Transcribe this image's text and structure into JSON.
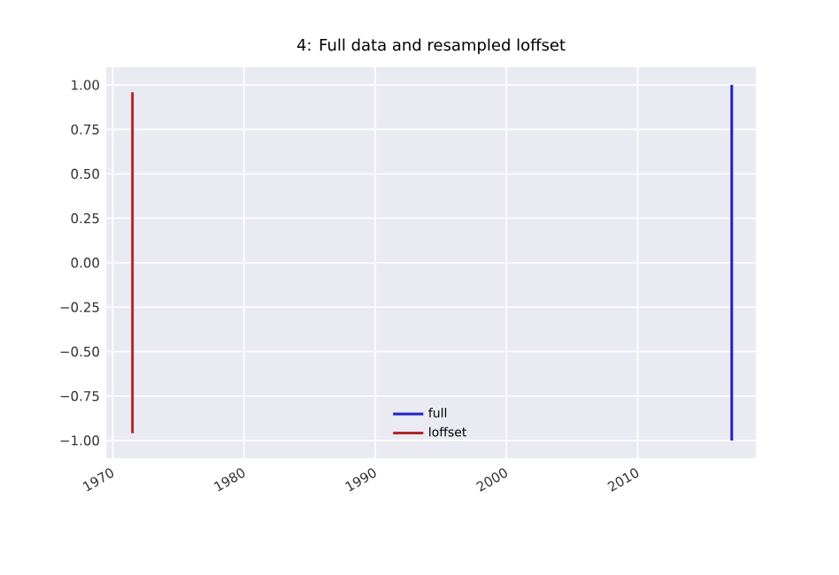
{
  "chart_data": {
    "type": "line",
    "title": "4: Full data and resampled loffset",
    "xlim": [
      "1969-07",
      "2019-01"
    ],
    "ylim": [
      -1.1,
      1.1
    ],
    "xticks": [
      "1970",
      "1980",
      "1990",
      "2000",
      "2010"
    ],
    "yticks": [
      {
        "value": 1,
        "label": "1.00"
      },
      {
        "value": 0.75,
        "label": "0.75"
      },
      {
        "value": 0.5,
        "label": "0.50"
      },
      {
        "value": 0.25,
        "label": "0.25"
      },
      {
        "value": 0,
        "label": "0.00"
      },
      {
        "value": -0.25,
        "label": "−0.25"
      },
      {
        "value": -0.5,
        "label": "−0.50"
      },
      {
        "value": -0.75,
        "label": "−0.75"
      },
      {
        "value": -1,
        "label": "−1.00"
      }
    ],
    "grid": true,
    "legend": "bottom",
    "series": [
      {
        "name": "full",
        "color": "#2020c8",
        "x": [
          "2017-03",
          "2017-03"
        ],
        "values": [
          -1.0,
          1.0
        ]
      },
      {
        "name": "loffset",
        "color": "#b02828",
        "x": [
          "1971-07",
          "1971-07"
        ],
        "values": [
          -0.96,
          0.96
        ]
      }
    ]
  }
}
